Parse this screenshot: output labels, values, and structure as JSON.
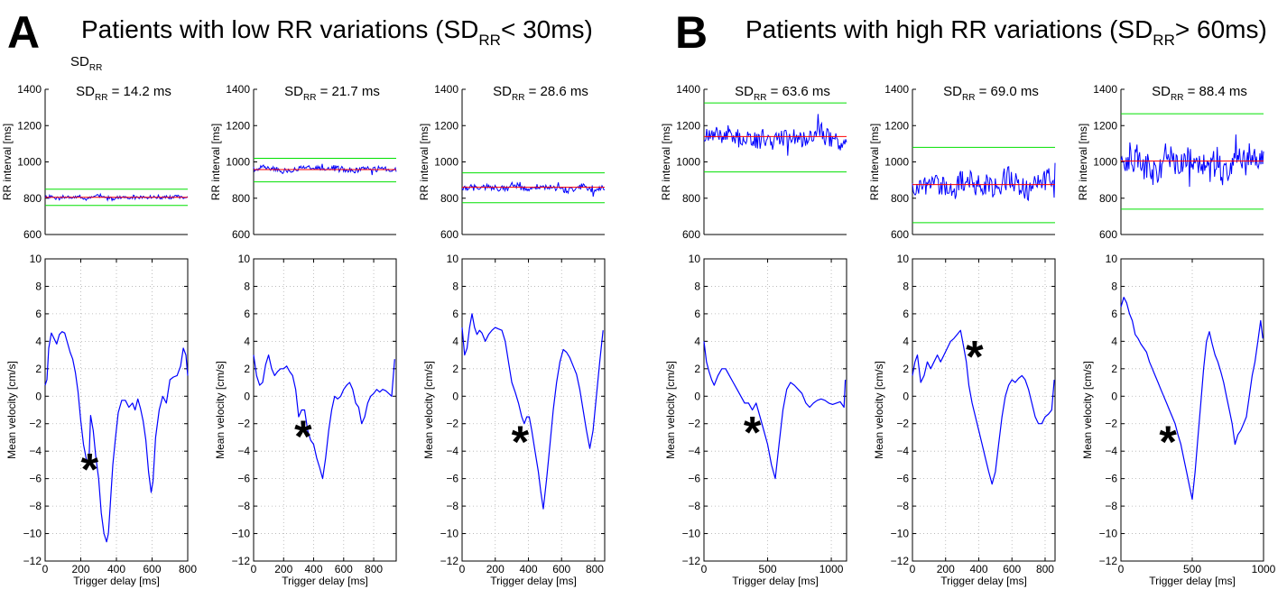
{
  "figure": {
    "panels": [
      {
        "letter": "A",
        "title_main": "Patients with low RR variations (SD",
        "title_sub": "RR",
        "title_tail": "< 30ms)"
      },
      {
        "letter": "B",
        "title_main": "Patients with high RR variations (SD",
        "title_sub": "RR",
        "title_tail": "> 60ms)"
      }
    ],
    "extra_label": {
      "main": "SD",
      "sub": "RR"
    },
    "colors": {
      "trace": "#0000ff",
      "mean_line": "#ff0000",
      "sd_band": "#00e000",
      "grid": "#b0b0b0"
    }
  },
  "chart_data": [
    {
      "type": "line",
      "panel": "A",
      "title_main": "SD",
      "title_sub": "RR",
      "title_value": "= 14.2 ms",
      "ylabel": "RR interval [ms]",
      "ylim": [
        600,
        1400
      ],
      "yticks": [
        600,
        800,
        1000,
        1200,
        1400
      ],
      "xlim": [
        0,
        800
      ],
      "grid": false,
      "mean": 805,
      "band": [
        760,
        850
      ],
      "noise": 11,
      "seed": 3
    },
    {
      "type": "line",
      "panel": "A",
      "title_main": "SD",
      "title_sub": "RR",
      "title_value": "= 21.7 ms",
      "ylabel": "",
      "ylim": [
        600,
        1400
      ],
      "yticks": [
        600,
        800,
        1000,
        1200,
        1400
      ],
      "xlim": [
        0,
        950
      ],
      "grid": false,
      "mean": 958,
      "band": [
        890,
        1020
      ],
      "noise": 17,
      "seed": 5
    },
    {
      "type": "line",
      "panel": "A",
      "title_main": "SD",
      "title_sub": "RR",
      "title_value": "= 28.6 ms",
      "ylabel": "",
      "ylim": [
        600,
        1400
      ],
      "yticks": [
        600,
        800,
        1000,
        1200,
        1400
      ],
      "xlim": [
        0,
        860
      ],
      "grid": false,
      "mean": 860,
      "band": [
        775,
        940
      ],
      "noise": 20,
      "seed": 7
    },
    {
      "type": "line",
      "panel": "B",
      "title_main": "SD",
      "title_sub": "RR",
      "title_value": "= 63.6 ms",
      "ylabel": "RR interval [ms]",
      "ylim": [
        600,
        1400
      ],
      "yticks": [
        600,
        800,
        1000,
        1200,
        1400
      ],
      "xlim": [
        0,
        1110
      ],
      "grid": false,
      "mean": 1140,
      "band": [
        945,
        1325
      ],
      "noise": 55,
      "seed": 11
    },
    {
      "type": "line",
      "panel": "B",
      "title_main": "SD",
      "title_sub": "RR",
      "title_value": "= 69.0 ms",
      "ylabel": "",
      "ylim": [
        600,
        1400
      ],
      "yticks": [
        600,
        800,
        1000,
        1200,
        1400
      ],
      "xlim": [
        0,
        860
      ],
      "grid": false,
      "mean": 875,
      "band": [
        665,
        1080
      ],
      "noise": 68,
      "seed": 13
    },
    {
      "type": "line",
      "panel": "B",
      "title_main": "SD",
      "title_sub": "RR",
      "title_value": "= 88.4 ms",
      "ylabel": "",
      "ylim": [
        600,
        1400
      ],
      "yticks": [
        600,
        800,
        1000,
        1200,
        1400
      ],
      "xlim": [
        0,
        1000
      ],
      "grid": false,
      "mean": 1005,
      "band": [
        740,
        1265
      ],
      "noise": 85,
      "seed": 17
    },
    {
      "type": "line",
      "panel": "A",
      "ylabel": "Mean velocity [cm/s]",
      "xlabel": "Trigger delay [ms]",
      "ylim": [
        -12,
        10
      ],
      "yticks": [
        -12,
        -10,
        -8,
        -6,
        -4,
        -2,
        0,
        2,
        4,
        6,
        8,
        10
      ],
      "xlim": [
        0,
        800
      ],
      "xticks": [
        0,
        200,
        400,
        600,
        800
      ],
      "grid": true,
      "marker": "*",
      "marker_at": [
        250,
        -5.0
      ],
      "x": [
        0,
        10,
        20,
        35,
        50,
        65,
        80,
        95,
        110,
        125,
        140,
        155,
        170,
        185,
        200,
        215,
        230,
        245,
        255,
        270,
        285,
        300,
        315,
        330,
        345,
        355,
        365,
        380,
        395,
        410,
        430,
        450,
        470,
        490,
        505,
        520,
        535,
        550,
        565,
        580,
        595,
        605,
        620,
        640,
        660,
        680,
        700,
        720,
        740,
        760,
        775,
        790,
        800
      ],
      "y": [
        0.8,
        1.2,
        3.5,
        4.6,
        4.2,
        3.8,
        4.5,
        4.7,
        4.6,
        3.9,
        3.2,
        2.7,
        1.7,
        0.3,
        -1.8,
        -3.5,
        -4.5,
        -5.0,
        -1.4,
        -2.5,
        -4.5,
        -6.0,
        -8.5,
        -10.0,
        -10.6,
        -10.0,
        -8.0,
        -5.0,
        -3.0,
        -1.2,
        -0.3,
        -0.3,
        -0.8,
        -0.5,
        -1.0,
        -0.2,
        -0.9,
        -1.8,
        -3.2,
        -5.5,
        -7.0,
        -6.2,
        -3.0,
        -1.0,
        0.0,
        -0.5,
        1.2,
        1.4,
        1.5,
        2.2,
        3.5,
        3.0,
        1.5
      ]
    },
    {
      "type": "line",
      "panel": "A",
      "ylabel": "",
      "xlabel": "Trigger delay [ms]",
      "ylim": [
        -12,
        10
      ],
      "yticks": [
        -12,
        -10,
        -8,
        -6,
        -4,
        -2,
        0,
        2,
        4,
        6,
        8,
        10
      ],
      "xlim": [
        0,
        950
      ],
      "xticks": [
        0,
        200,
        400,
        600,
        800
      ],
      "grid": true,
      "marker": "*",
      "marker_at": [
        330,
        -2.6
      ],
      "x": [
        0,
        20,
        40,
        60,
        80,
        100,
        120,
        140,
        160,
        180,
        200,
        220,
        240,
        260,
        280,
        300,
        320,
        340,
        360,
        380,
        400,
        420,
        440,
        460,
        480,
        500,
        520,
        540,
        560,
        580,
        600,
        620,
        640,
        660,
        680,
        700,
        720,
        740,
        760,
        780,
        800,
        820,
        840,
        860,
        880,
        900,
        920,
        940
      ],
      "y": [
        3.0,
        1.5,
        0.8,
        1.0,
        2.3,
        3.0,
        2.0,
        1.5,
        1.8,
        2.0,
        2.0,
        2.2,
        1.8,
        1.5,
        0.5,
        -1.5,
        -1.0,
        -1.0,
        -2.5,
        -3.2,
        -3.5,
        -4.5,
        -5.2,
        -6.0,
        -4.5,
        -2.5,
        -1.0,
        0.0,
        -0.2,
        0.0,
        0.5,
        0.8,
        1.0,
        0.5,
        -0.5,
        -0.8,
        -2.0,
        -1.5,
        -0.5,
        0.0,
        0.2,
        0.5,
        0.3,
        0.5,
        0.4,
        0.2,
        0.0,
        2.7
      ]
    },
    {
      "type": "line",
      "panel": "A",
      "ylabel": "",
      "xlabel": "Trigger delay [ms]",
      "ylim": [
        -12,
        10
      ],
      "yticks": [
        -12,
        -10,
        -8,
        -6,
        -4,
        -2,
        0,
        2,
        4,
        6,
        8,
        10
      ],
      "xlim": [
        0,
        860
      ],
      "xticks": [
        0,
        200,
        400,
        600,
        800
      ],
      "grid": true,
      "marker": "*",
      "marker_at": [
        350,
        -3.0
      ],
      "x": [
        0,
        15,
        30,
        45,
        60,
        75,
        90,
        105,
        120,
        140,
        160,
        180,
        200,
        220,
        240,
        260,
        280,
        300,
        320,
        340,
        360,
        375,
        390,
        405,
        420,
        440,
        460,
        475,
        490,
        510,
        530,
        550,
        570,
        590,
        610,
        630,
        650,
        670,
        690,
        710,
        730,
        750,
        770,
        790,
        810,
        830,
        850
      ],
      "y": [
        5.0,
        3.0,
        3.5,
        5.0,
        6.0,
        5.0,
        4.5,
        4.8,
        4.6,
        4.0,
        4.5,
        4.8,
        5.0,
        4.9,
        4.8,
        4.0,
        2.5,
        1.0,
        0.3,
        -0.5,
        -1.5,
        -2.0,
        -1.5,
        -1.5,
        -2.5,
        -4.0,
        -5.5,
        -7.0,
        -8.2,
        -6.0,
        -3.5,
        -1.0,
        1.0,
        2.5,
        3.4,
        3.2,
        2.8,
        2.2,
        1.6,
        0.5,
        -1.0,
        -2.5,
        -3.8,
        -2.5,
        0.0,
        2.5,
        4.8
      ]
    },
    {
      "type": "line",
      "panel": "B",
      "ylabel": "Mean velocity [cm/s]",
      "xlabel": "Trigger delay [ms]",
      "ylim": [
        -12,
        10
      ],
      "yticks": [
        -12,
        -10,
        -8,
        -6,
        -4,
        -2,
        0,
        2,
        4,
        6,
        8,
        10
      ],
      "xlim": [
        0,
        1120
      ],
      "xticks": [
        0,
        500,
        1000
      ],
      "grid": true,
      "marker": "*",
      "marker_at": [
        380,
        -2.3
      ],
      "x": [
        0,
        20,
        40,
        60,
        80,
        110,
        140,
        170,
        200,
        230,
        260,
        290,
        320,
        350,
        380,
        410,
        440,
        470,
        500,
        530,
        560,
        590,
        620,
        650,
        680,
        710,
        740,
        770,
        800,
        830,
        860,
        890,
        920,
        950,
        980,
        1010,
        1040,
        1070,
        1100,
        1110
      ],
      "y": [
        4.0,
        2.5,
        1.8,
        1.2,
        0.8,
        1.5,
        2.0,
        2.0,
        1.5,
        1.0,
        0.5,
        0.0,
        -0.5,
        -0.5,
        -1.0,
        -0.5,
        -1.5,
        -2.5,
        -3.5,
        -5.0,
        -6.0,
        -3.5,
        -1.0,
        0.5,
        1.0,
        0.8,
        0.5,
        0.2,
        -0.5,
        -0.8,
        -0.5,
        -0.3,
        -0.2,
        -0.3,
        -0.5,
        -0.6,
        -0.5,
        -0.4,
        -0.8,
        1.2
      ]
    },
    {
      "type": "line",
      "panel": "B",
      "ylabel": "",
      "xlabel": "Trigger delay [ms]",
      "ylim": [
        -12,
        10
      ],
      "yticks": [
        -12,
        -10,
        -8,
        -6,
        -4,
        -2,
        0,
        2,
        4,
        6,
        8,
        10
      ],
      "xlim": [
        0,
        860
      ],
      "xticks": [
        0,
        200,
        400,
        600,
        800
      ],
      "grid": true,
      "marker": "*",
      "marker_at": [
        375,
        3.2
      ],
      "x": [
        0,
        15,
        30,
        50,
        70,
        90,
        110,
        130,
        150,
        170,
        190,
        210,
        230,
        250,
        270,
        290,
        310,
        325,
        340,
        360,
        380,
        400,
        420,
        440,
        460,
        480,
        500,
        520,
        540,
        560,
        580,
        600,
        620,
        640,
        660,
        680,
        700,
        720,
        740,
        760,
        780,
        800,
        820,
        840,
        855
      ],
      "y": [
        1.5,
        2.5,
        3.0,
        1.0,
        1.5,
        2.5,
        2.0,
        2.5,
        3.0,
        2.5,
        3.0,
        3.5,
        4.0,
        4.2,
        4.5,
        4.8,
        3.5,
        2.5,
        0.8,
        -0.5,
        -1.5,
        -2.5,
        -3.5,
        -4.5,
        -5.5,
        -6.4,
        -5.5,
        -3.5,
        -1.5,
        0.0,
        0.8,
        1.2,
        1.0,
        1.3,
        1.5,
        1.2,
        0.5,
        -0.5,
        -1.5,
        -2.0,
        -2.0,
        -1.5,
        -1.3,
        -1.0,
        1.2
      ]
    },
    {
      "type": "line",
      "panel": "B",
      "ylabel": "",
      "xlabel": "Trigger delay [ms]",
      "ylim": [
        -12,
        10
      ],
      "yticks": [
        -12,
        -10,
        -8,
        -6,
        -4,
        -2,
        0,
        2,
        4,
        6,
        8,
        10
      ],
      "xlim": [
        0,
        1000
      ],
      "xticks": [
        0,
        500,
        1000
      ],
      "grid": true,
      "marker": "*",
      "marker_at": [
        330,
        -3.0
      ],
      "x": [
        0,
        20,
        40,
        60,
        80,
        100,
        120,
        140,
        160,
        180,
        200,
        220,
        240,
        260,
        280,
        300,
        320,
        340,
        360,
        380,
        400,
        420,
        440,
        460,
        480,
        500,
        520,
        540,
        560,
        580,
        600,
        620,
        640,
        660,
        680,
        700,
        720,
        740,
        760,
        780,
        800,
        820,
        840,
        860,
        880,
        900,
        920,
        940,
        960,
        980,
        995
      ],
      "y": [
        6.5,
        7.2,
        6.8,
        6.0,
        5.5,
        4.5,
        4.2,
        3.8,
        3.5,
        3.2,
        2.5,
        2.0,
        1.5,
        1.0,
        0.5,
        0.0,
        -0.5,
        -1.0,
        -1.5,
        -2.0,
        -2.8,
        -3.5,
        -4.5,
        -5.5,
        -6.5,
        -7.5,
        -5.5,
        -3.0,
        -0.5,
        2.0,
        4.0,
        4.7,
        3.8,
        3.0,
        2.5,
        1.8,
        1.0,
        0.0,
        -1.0,
        -2.0,
        -3.5,
        -2.8,
        -2.5,
        -2.0,
        -1.5,
        0.0,
        1.5,
        2.5,
        4.0,
        5.5,
        4.2
      ]
    }
  ]
}
